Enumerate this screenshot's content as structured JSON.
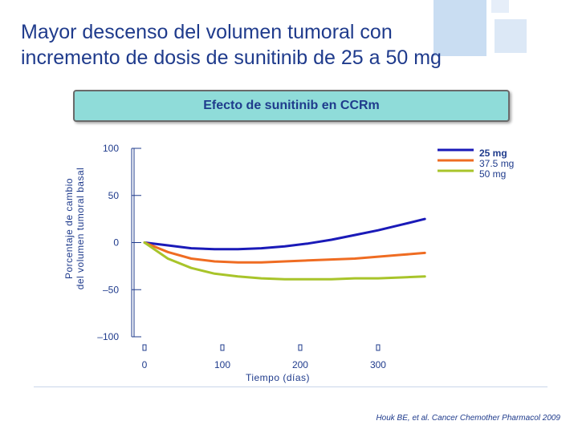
{
  "title_lines": [
    "Mayor descenso del volumen tumoral con",
    "incremento de dosis de sunitinib de 25 a 50 mg"
  ],
  "banner": "Efecto de sunitinib en CCRm",
  "citation": "Houk BE, et al. Cancer Chemother Pharmacol 2009",
  "colors": {
    "title": "#1f3b8c",
    "banner_bg": "#8fdcd9",
    "deco": "#c9ddf2"
  },
  "chart_data": {
    "type": "line",
    "title": "",
    "xlabel": "Tiempo (días)",
    "ylabel_lines": [
      "Porcentaje de cambio",
      "del volumen tumoral basal"
    ],
    "xlim": [
      0,
      365
    ],
    "ylim": [
      -100,
      100
    ],
    "x_ticks": [
      0,
      100,
      200,
      300
    ],
    "x_tick_labels": [
      "0",
      "100",
      "200",
      "300"
    ],
    "y_ticks": [
      100,
      50,
      0,
      -50,
      -100
    ],
    "y_tick_labels": [
      "100",
      "50",
      "0",
      "–50",
      "–100"
    ],
    "legend_position": "top-right",
    "series": [
      {
        "name": "25 mg",
        "color": "#1a1ab8",
        "x": [
          0,
          30,
          60,
          90,
          120,
          150,
          180,
          210,
          240,
          270,
          300,
          330,
          360
        ],
        "y": [
          0,
          -3,
          -6,
          -7,
          -7,
          -6,
          -4,
          -1,
          3,
          8,
          13,
          19,
          25
        ]
      },
      {
        "name": "37.5 mg",
        "color": "#ef6c22",
        "x": [
          0,
          30,
          60,
          90,
          120,
          150,
          180,
          210,
          240,
          270,
          300,
          330,
          360
        ],
        "y": [
          0,
          -10,
          -17,
          -20,
          -21,
          -21,
          -20,
          -19,
          -18,
          -17,
          -15,
          -13,
          -11
        ]
      },
      {
        "name": "50 mg",
        "color": "#a8c42a",
        "x": [
          0,
          30,
          60,
          90,
          120,
          150,
          180,
          210,
          240,
          270,
          300,
          330,
          360
        ],
        "y": [
          0,
          -17,
          -27,
          -33,
          -36,
          -38,
          -39,
          -39,
          -39,
          -38,
          -38,
          -37,
          -36
        ]
      }
    ]
  }
}
